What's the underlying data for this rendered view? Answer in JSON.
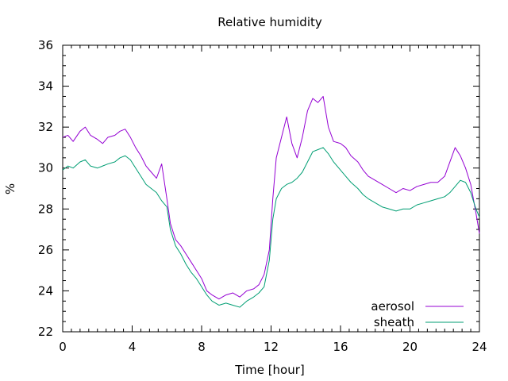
{
  "chart_data": {
    "type": "line",
    "title": "Relative humidity",
    "xlabel": "Time [hour]",
    "ylabel": "%",
    "xlim": [
      0,
      24
    ],
    "ylim": [
      22,
      36
    ],
    "xticks": [
      0,
      4,
      8,
      12,
      16,
      20,
      24
    ],
    "yticks": [
      22,
      24,
      26,
      28,
      30,
      32,
      34,
      36
    ],
    "grid": false,
    "legend_position": "bottom-right",
    "series": [
      {
        "name": "aerosol",
        "color": "#9400d3",
        "points": [
          [
            0,
            31.5
          ],
          [
            0.3,
            31.6
          ],
          [
            0.6,
            31.3
          ],
          [
            1.0,
            31.8
          ],
          [
            1.3,
            32.0
          ],
          [
            1.6,
            31.6
          ],
          [
            2.0,
            31.4
          ],
          [
            2.3,
            31.2
          ],
          [
            2.6,
            31.5
          ],
          [
            3.0,
            31.6
          ],
          [
            3.3,
            31.8
          ],
          [
            3.6,
            31.9
          ],
          [
            3.9,
            31.5
          ],
          [
            4.2,
            31.0
          ],
          [
            4.5,
            30.6
          ],
          [
            4.8,
            30.1
          ],
          [
            5.1,
            29.8
          ],
          [
            5.4,
            29.5
          ],
          [
            5.7,
            30.2
          ],
          [
            6.0,
            28.5
          ],
          [
            6.2,
            27.3
          ],
          [
            6.5,
            26.5
          ],
          [
            6.8,
            26.2
          ],
          [
            7.1,
            25.8
          ],
          [
            7.4,
            25.4
          ],
          [
            7.7,
            25.0
          ],
          [
            8.0,
            24.6
          ],
          [
            8.3,
            24.0
          ],
          [
            8.6,
            23.8
          ],
          [
            9.0,
            23.6
          ],
          [
            9.4,
            23.8
          ],
          [
            9.8,
            23.9
          ],
          [
            10.2,
            23.7
          ],
          [
            10.6,
            24.0
          ],
          [
            11.0,
            24.1
          ],
          [
            11.3,
            24.3
          ],
          [
            11.6,
            24.8
          ],
          [
            11.9,
            26.0
          ],
          [
            12.1,
            28.5
          ],
          [
            12.3,
            30.5
          ],
          [
            12.6,
            31.5
          ],
          [
            12.9,
            32.5
          ],
          [
            13.2,
            31.2
          ],
          [
            13.5,
            30.5
          ],
          [
            13.8,
            31.5
          ],
          [
            14.1,
            32.8
          ],
          [
            14.4,
            33.4
          ],
          [
            14.7,
            33.2
          ],
          [
            15.0,
            33.5
          ],
          [
            15.3,
            32.0
          ],
          [
            15.6,
            31.3
          ],
          [
            16.0,
            31.2
          ],
          [
            16.3,
            31.0
          ],
          [
            16.6,
            30.6
          ],
          [
            17.0,
            30.3
          ],
          [
            17.3,
            29.9
          ],
          [
            17.6,
            29.6
          ],
          [
            18.0,
            29.4
          ],
          [
            18.4,
            29.2
          ],
          [
            18.8,
            29.0
          ],
          [
            19.2,
            28.8
          ],
          [
            19.6,
            29.0
          ],
          [
            20.0,
            28.9
          ],
          [
            20.4,
            29.1
          ],
          [
            20.8,
            29.2
          ],
          [
            21.2,
            29.3
          ],
          [
            21.6,
            29.3
          ],
          [
            22.0,
            29.6
          ],
          [
            22.3,
            30.3
          ],
          [
            22.6,
            31.0
          ],
          [
            22.9,
            30.6
          ],
          [
            23.2,
            30.0
          ],
          [
            23.5,
            29.2
          ],
          [
            23.8,
            27.8
          ],
          [
            24.0,
            26.8
          ]
        ]
      },
      {
        "name": "sheath",
        "color": "#009e73",
        "points": [
          [
            0,
            29.9
          ],
          [
            0.3,
            30.1
          ],
          [
            0.6,
            30.0
          ],
          [
            1.0,
            30.3
          ],
          [
            1.3,
            30.4
          ],
          [
            1.6,
            30.1
          ],
          [
            2.0,
            30.0
          ],
          [
            2.3,
            30.1
          ],
          [
            2.6,
            30.2
          ],
          [
            3.0,
            30.3
          ],
          [
            3.3,
            30.5
          ],
          [
            3.6,
            30.6
          ],
          [
            3.9,
            30.4
          ],
          [
            4.2,
            30.0
          ],
          [
            4.5,
            29.6
          ],
          [
            4.8,
            29.2
          ],
          [
            5.1,
            29.0
          ],
          [
            5.4,
            28.8
          ],
          [
            5.7,
            28.4
          ],
          [
            6.0,
            28.1
          ],
          [
            6.2,
            27.0
          ],
          [
            6.5,
            26.2
          ],
          [
            6.8,
            25.8
          ],
          [
            7.1,
            25.3
          ],
          [
            7.4,
            24.9
          ],
          [
            7.7,
            24.6
          ],
          [
            8.0,
            24.2
          ],
          [
            8.3,
            23.8
          ],
          [
            8.6,
            23.5
          ],
          [
            9.0,
            23.3
          ],
          [
            9.4,
            23.4
          ],
          [
            9.8,
            23.3
          ],
          [
            10.2,
            23.2
          ],
          [
            10.6,
            23.5
          ],
          [
            11.0,
            23.7
          ],
          [
            11.3,
            23.9
          ],
          [
            11.6,
            24.2
          ],
          [
            11.9,
            25.5
          ],
          [
            12.1,
            27.5
          ],
          [
            12.3,
            28.5
          ],
          [
            12.6,
            29.0
          ],
          [
            12.9,
            29.2
          ],
          [
            13.2,
            29.3
          ],
          [
            13.5,
            29.5
          ],
          [
            13.8,
            29.8
          ],
          [
            14.1,
            30.3
          ],
          [
            14.4,
            30.8
          ],
          [
            14.7,
            30.9
          ],
          [
            15.0,
            31.0
          ],
          [
            15.3,
            30.7
          ],
          [
            15.6,
            30.3
          ],
          [
            16.0,
            29.9
          ],
          [
            16.3,
            29.6
          ],
          [
            16.6,
            29.3
          ],
          [
            17.0,
            29.0
          ],
          [
            17.3,
            28.7
          ],
          [
            17.6,
            28.5
          ],
          [
            18.0,
            28.3
          ],
          [
            18.4,
            28.1
          ],
          [
            18.8,
            28.0
          ],
          [
            19.2,
            27.9
          ],
          [
            19.6,
            28.0
          ],
          [
            20.0,
            28.0
          ],
          [
            20.4,
            28.2
          ],
          [
            20.8,
            28.3
          ],
          [
            21.2,
            28.4
          ],
          [
            21.6,
            28.5
          ],
          [
            22.0,
            28.6
          ],
          [
            22.3,
            28.8
          ],
          [
            22.6,
            29.1
          ],
          [
            22.9,
            29.4
          ],
          [
            23.2,
            29.3
          ],
          [
            23.5,
            28.8
          ],
          [
            23.8,
            28.0
          ],
          [
            24.0,
            27.6
          ]
        ]
      }
    ]
  }
}
